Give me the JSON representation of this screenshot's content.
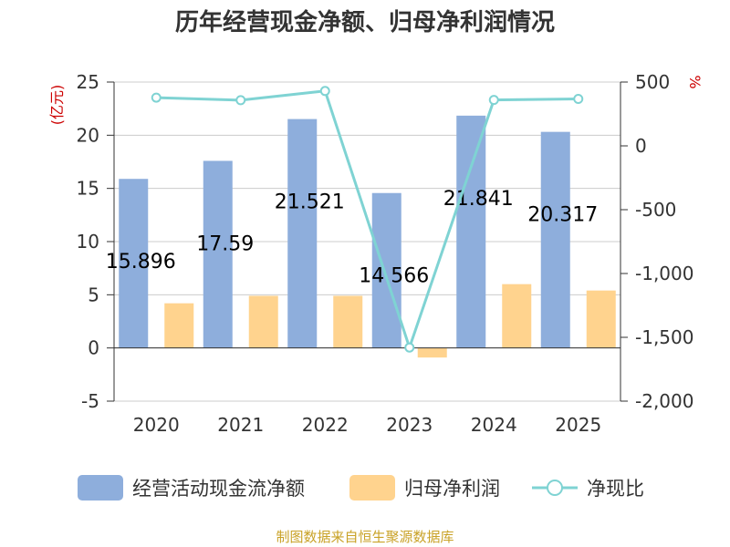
{
  "title": "历年经营现金净额、归母净利润情况",
  "source": "制图数据来自恒生聚源数据库",
  "colors": {
    "cash_flow": "#8eaedc",
    "net_profit": "#ffd38e",
    "ratio": "#7fd3d3",
    "grid": "#cccccc",
    "axis": "#333333",
    "unit": "#cc0000"
  },
  "chart_data": {
    "type": "bar",
    "title": "历年经营现金净额、归母净利润情况",
    "categories": [
      "2020",
      "2021",
      "2022",
      "2023",
      "2024",
      "2025"
    ],
    "left_axis": {
      "unit": "(亿元)",
      "ylim": [
        -5,
        25
      ],
      "ticks": [
        -5,
        0,
        5,
        10,
        15,
        20,
        25
      ],
      "tick_labels": [
        "-5",
        "0",
        "5",
        "10",
        "15",
        "20",
        "25"
      ]
    },
    "right_axis": {
      "unit": "%",
      "ylim": [
        -2000,
        500
      ],
      "ticks": [
        -2000,
        -1500,
        -1000,
        -500,
        0,
        500
      ],
      "tick_labels": [
        "-2,000",
        "-1,500",
        "-1,000",
        "-500",
        "0",
        "500"
      ]
    },
    "series": [
      {
        "name": "经营活动现金流净额",
        "type": "bar",
        "axis": "left",
        "values": [
          15.896,
          17.59,
          21.521,
          14.566,
          21.841,
          20.317
        ],
        "labels": [
          "15.896",
          "17.59",
          "21.521",
          "14.566",
          "21.841",
          "20.317"
        ]
      },
      {
        "name": "归母净利润",
        "type": "bar",
        "axis": "left",
        "values": [
          4.2,
          4.9,
          4.9,
          -0.9,
          6.0,
          5.4
        ]
      },
      {
        "name": "净现比",
        "type": "line",
        "axis": "right",
        "values": [
          378,
          358,
          430,
          -1580,
          360,
          368
        ]
      }
    ],
    "grid": true,
    "legend": "bottom"
  }
}
